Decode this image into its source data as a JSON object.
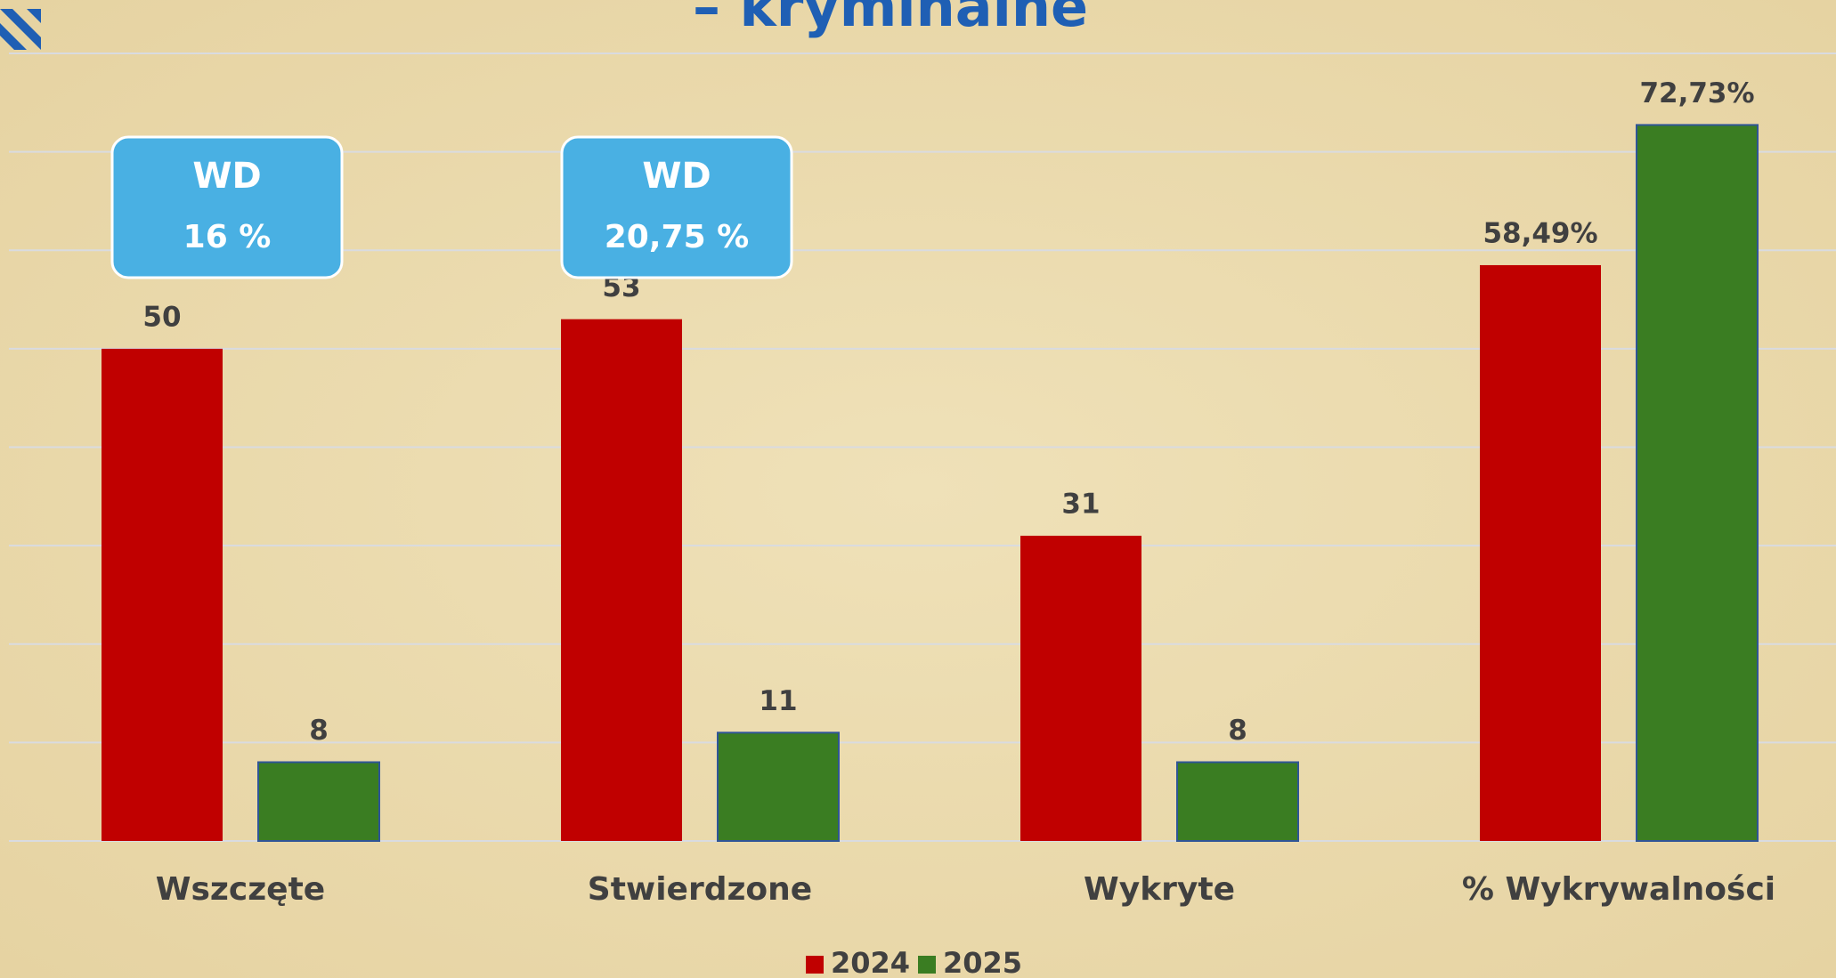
{
  "chart_data": {
    "type": "bar",
    "title": "– kryminalne",
    "categories": [
      "Wszczęte",
      "Stwierdzone",
      "Wykryte",
      "% Wykrywalności"
    ],
    "series": [
      {
        "name": "2024",
        "color": "#c00000",
        "values": [
          50,
          53,
          31,
          58.49
        ],
        "value_labels": [
          "50",
          "53",
          "31",
          "58,49%"
        ]
      },
      {
        "name": "2025",
        "color": "#3a7d22",
        "values": [
          8,
          11,
          8,
          72.73
        ],
        "value_labels": [
          "8",
          "11",
          "8",
          "72,73%"
        ]
      }
    ],
    "annotations": [
      {
        "title": "WD",
        "text": "16 %"
      },
      {
        "title": "WD",
        "text": "20,75 %"
      }
    ],
    "ylim": [
      0,
      80
    ],
    "yticks": [
      0,
      10,
      20,
      30,
      40,
      50,
      60,
      70,
      80
    ],
    "grid": true,
    "legend": "bottom"
  }
}
